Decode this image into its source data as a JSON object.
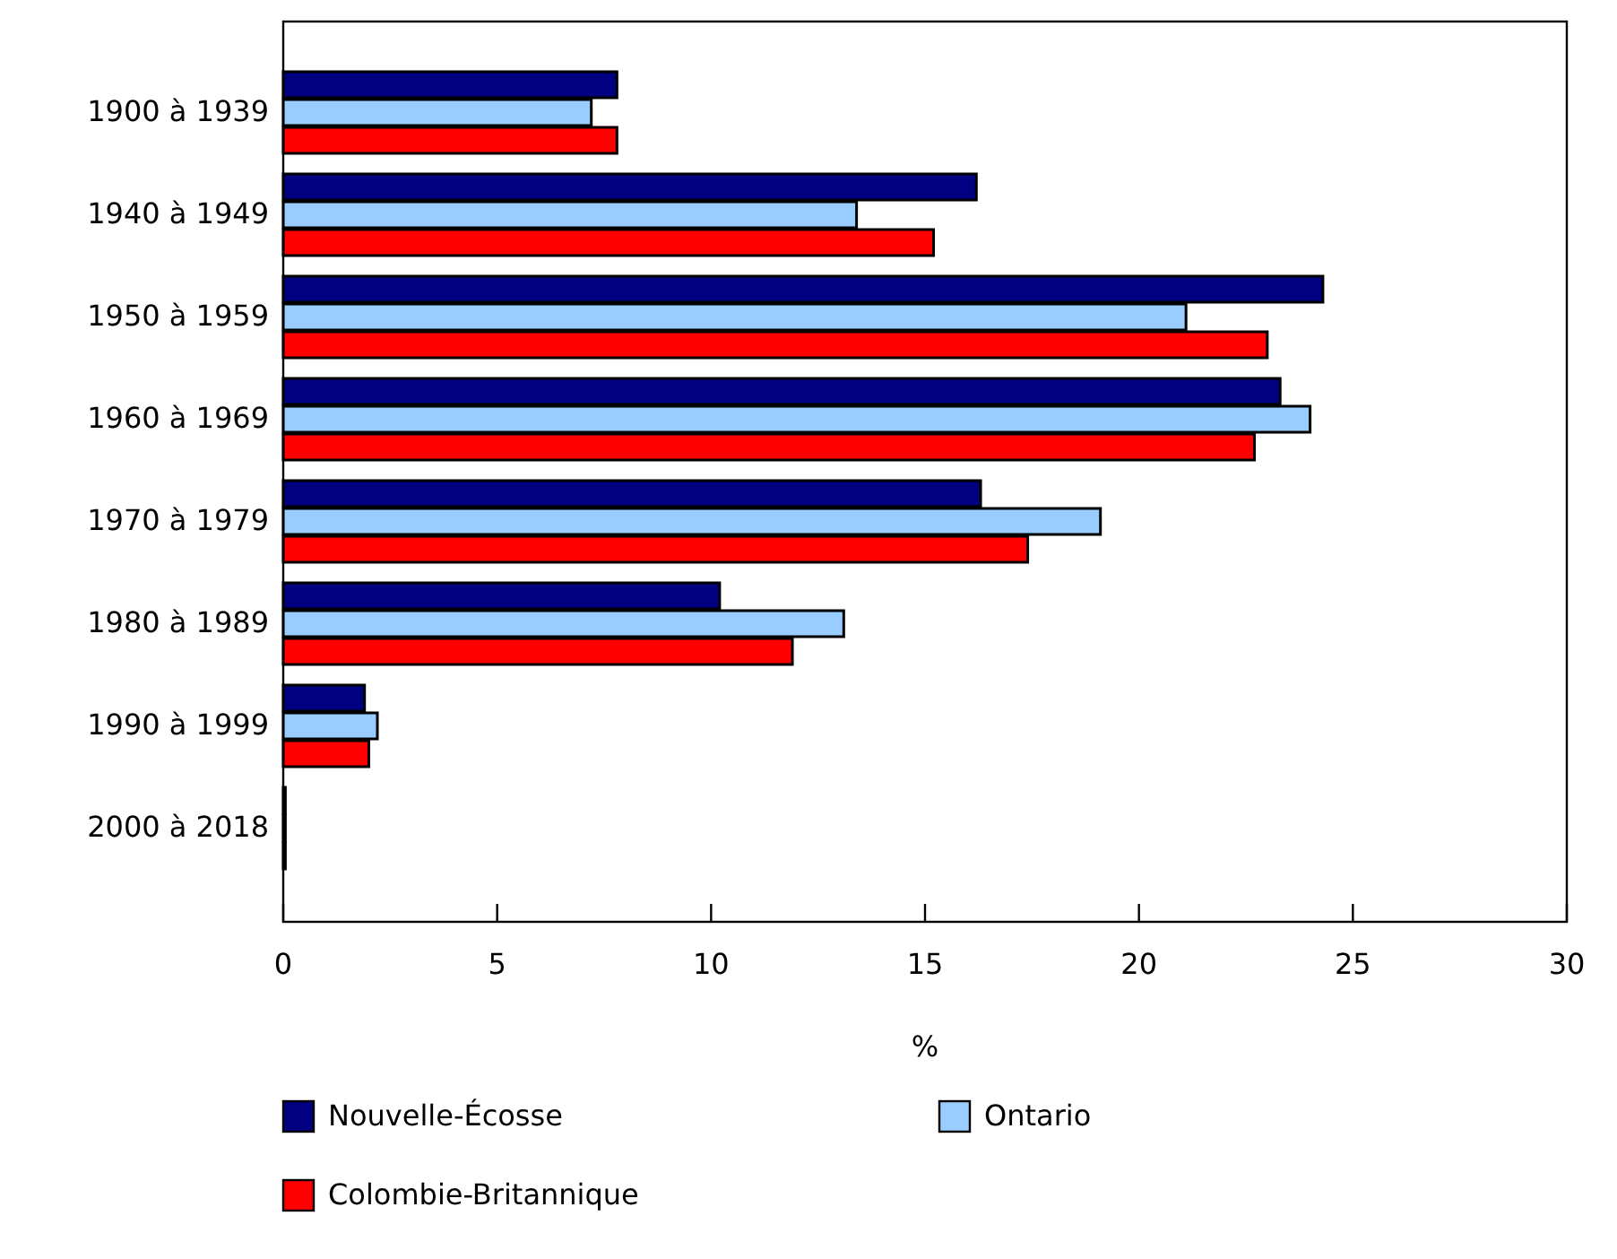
{
  "chart_data": {
    "type": "bar",
    "orientation": "horizontal",
    "xlabel": "%",
    "categories": [
      "1900 à 1939",
      "1940 à 1949",
      "1950 à 1959",
      "1960 à 1969",
      "1970 à 1979",
      "1980 à 1989",
      "1990 à 1999",
      "2000 à 2018"
    ],
    "series": [
      {
        "name": "Nouvelle-Écosse",
        "color": "#000080",
        "values": [
          7.8,
          16.2,
          24.3,
          23.3,
          16.3,
          10.2,
          1.9,
          0.05
        ]
      },
      {
        "name": "Ontario",
        "color": "#99ccff",
        "values": [
          7.2,
          13.4,
          21.1,
          24.0,
          19.1,
          13.1,
          2.2,
          0.05
        ]
      },
      {
        "name": "Colombie-Britannique",
        "color": "#ff0000",
        "values": [
          7.8,
          15.2,
          23.0,
          22.7,
          17.4,
          11.9,
          2.0,
          0.05
        ]
      }
    ],
    "xlim": [
      0,
      30
    ],
    "xticks": [
      0,
      5,
      10,
      15,
      20,
      25,
      30
    ],
    "grid": false,
    "legend": "bottom"
  }
}
